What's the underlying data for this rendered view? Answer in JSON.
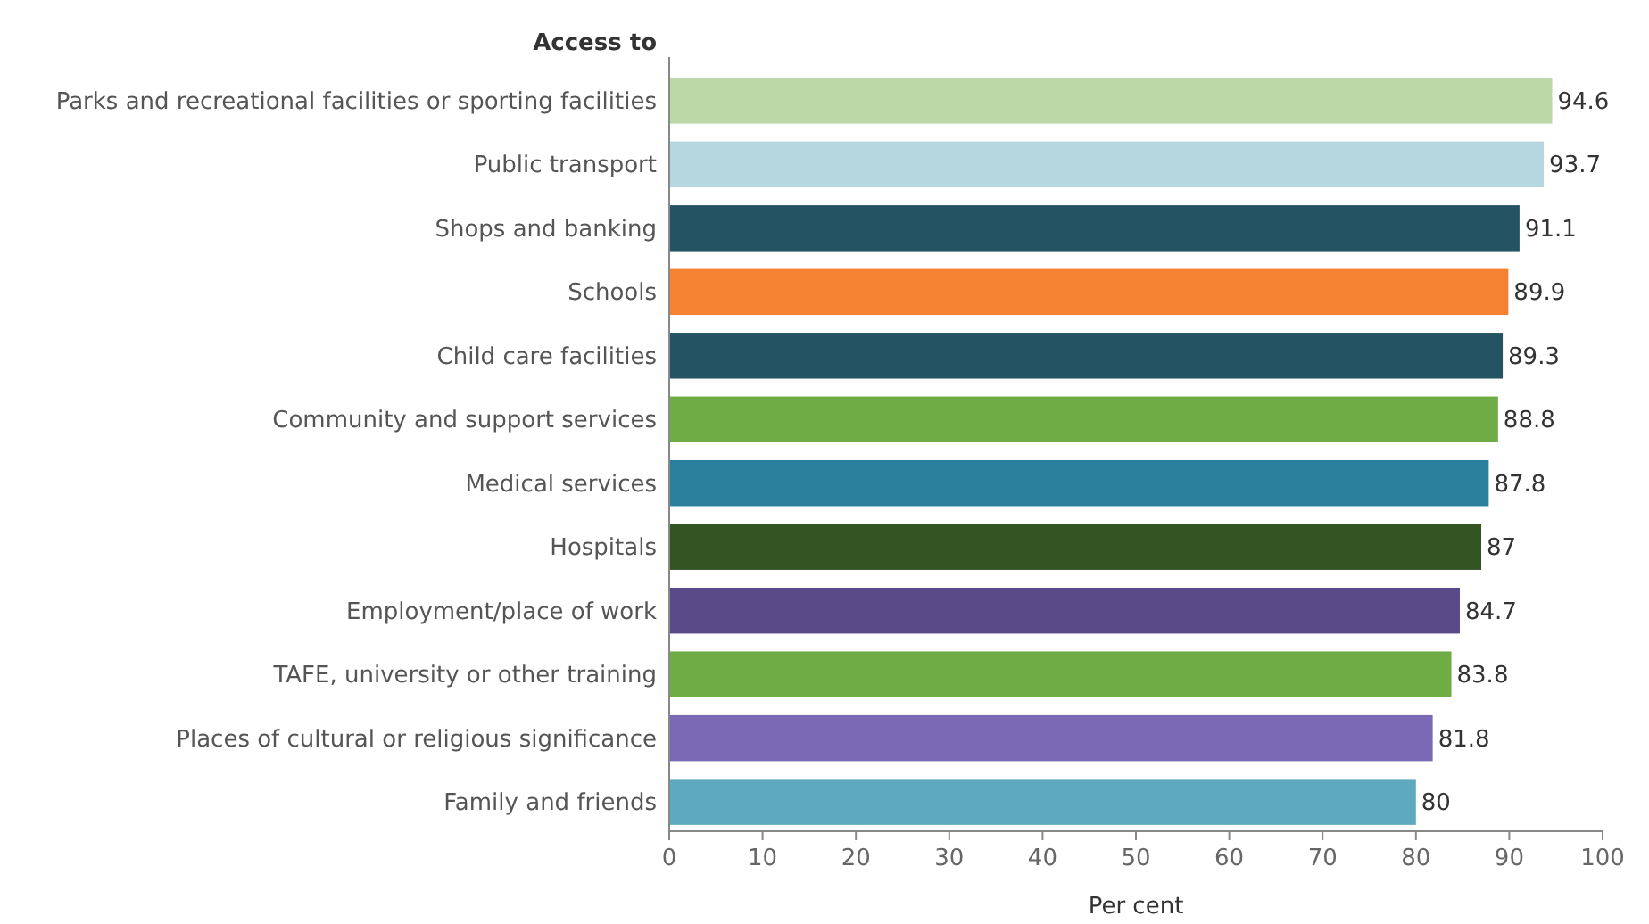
{
  "chart_data": {
    "type": "bar",
    "orientation": "horizontal",
    "ylabel": "Access to",
    "xlabel": "Per cent",
    "categories": [
      "Parks and recreational facilities or sporting facilities",
      "Public transport",
      "Shops and banking",
      "Schools",
      "Child care facilities",
      "Community and support services",
      "Medical services",
      "Hospitals",
      "Employment/place of work",
      "TAFE, university or other training",
      "Places of cultural or religious significance",
      "Family and friends"
    ],
    "values": [
      94.6,
      93.7,
      91.1,
      89.9,
      89.3,
      88.8,
      87.8,
      87,
      84.7,
      83.8,
      81.8,
      80
    ],
    "colors": [
      "#bcd8a6",
      "#b6d7e0",
      "#245464",
      "#f58232",
      "#245464",
      "#6fac46",
      "#2a7f9c",
      "#345423",
      "#574a86",
      "#6fac46",
      "#7a69b4",
      "#5ea9c0"
    ],
    "xlim": [
      0,
      100
    ],
    "xticks": [
      0,
      10,
      20,
      30,
      40,
      50,
      60,
      70,
      80,
      90,
      100
    ],
    "data_labels": true,
    "grid": false
  }
}
